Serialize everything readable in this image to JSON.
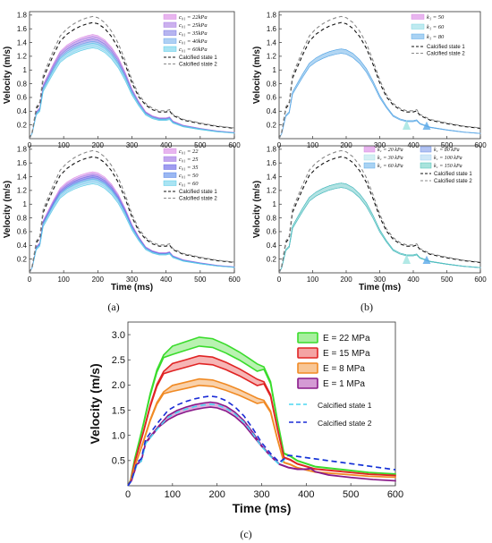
{
  "captions": [
    "(a)",
    "(b)",
    "(c)"
  ],
  "chart_data": [
    {
      "panel": "a-top",
      "type": "line",
      "xlabel": "",
      "ylabel": "Velocity (m/s)",
      "xlim": [
        0,
        600
      ],
      "ylim": [
        0,
        1.85
      ],
      "xticks": [
        "0",
        "100",
        "200",
        "300",
        "400",
        "500",
        "600"
      ],
      "yticks": [
        "0.2",
        "0.4",
        "0.6",
        "0.8",
        "1",
        "1.2",
        "1.4",
        "1.6",
        "1.8"
      ],
      "series": [
        {
          "name": "c₀₁ = 22kPa",
          "color": "#d98be6",
          "fill": "#e8b5ef",
          "scale": 0.835
        },
        {
          "name": "c₀₁ = 25kPa",
          "color": "#a67de3",
          "fill": "#cbb0ee",
          "scale": 0.82
        },
        {
          "name": "c₀₁ = 35kPa",
          "color": "#7a78e0",
          "fill": "#b6b4f0",
          "scale": 0.8
        },
        {
          "name": "c₀₁ = 40kPa",
          "color": "#6aa6e8",
          "fill": "#aed0f4",
          "scale": 0.78
        },
        {
          "name": "c₀₁ = 60kPa",
          "color": "#58c9e6",
          "fill": "#a9e4f3",
          "scale": 0.765
        },
        {
          "name": "Calcified state 1",
          "color": "#111111",
          "dash": "4,3",
          "scale": 0.95
        },
        {
          "name": "Calcified state 2",
          "color": "#888888",
          "dash": "4,3",
          "scale": 1.0
        }
      ]
    },
    {
      "panel": "a-bottom",
      "type": "line",
      "xlabel": "Time (ms)",
      "ylabel": "Velocity (m/s)",
      "xlim": [
        0,
        600
      ],
      "ylim": [
        0,
        1.85
      ],
      "xticks": [
        "0",
        "100",
        "200",
        "300",
        "400",
        "500",
        "600"
      ],
      "yticks": [
        "0.2",
        "0.4",
        "0.6",
        "0.8",
        "1",
        "1.2",
        "1.4",
        "1.6",
        "1.8"
      ],
      "series": [
        {
          "name": "c₀₁ = 22",
          "color": "#d98be6",
          "fill": "#e8b5ef",
          "scale": 0.81
        },
        {
          "name": "c₀₁ = 25",
          "color": "#a67de3",
          "fill": "#c2a6ee",
          "scale": 0.795
        },
        {
          "name": "c₀₁ = 35",
          "color": "#6f6ee3",
          "fill": "#9f9cf0",
          "scale": 0.78
        },
        {
          "name": "c₀₁ = 50",
          "color": "#5d86e8",
          "fill": "#9ab7f2",
          "scale": 0.765
        },
        {
          "name": "c₀₁ = 60",
          "color": "#58c9e6",
          "fill": "#a9e4f3",
          "scale": 0.75
        },
        {
          "name": "Calcified state 1",
          "color": "#111111",
          "dash": "4,3",
          "scale": 0.95
        },
        {
          "name": "Calcified state 2",
          "color": "#888888",
          "dash": "4,3",
          "scale": 1.0
        }
      ]
    },
    {
      "panel": "b-top",
      "type": "line",
      "xlabel": "",
      "ylabel": "Velocity (m/s)",
      "xlim": [
        0,
        600
      ],
      "ylim": [
        0,
        1.85
      ],
      "xticks": [
        "0",
        "100",
        "200",
        "300",
        "400",
        "500",
        "600"
      ],
      "yticks": [
        "0.2",
        "0.4",
        "0.6",
        "0.8",
        "1",
        "1.2",
        "1.4",
        "1.6",
        "1.8"
      ],
      "series": [
        {
          "name": "k₁ = 50",
          "color": "#d98be6",
          "fill": "#e8b5ef",
          "scale": 0.72
        },
        {
          "name": "k₁ = 60",
          "color": "#7fd6e0",
          "fill": "#bfeaf0",
          "scale": 0.72
        },
        {
          "name": "k₁ = 80",
          "color": "#5aa9e8",
          "fill": "#a9d2f3",
          "scale": 0.72
        },
        {
          "name": "Calcified state 1",
          "color": "#111111",
          "dash": "4,3",
          "scale": 0.95
        },
        {
          "name": "Calcified state 2",
          "color": "#888888",
          "dash": "4,3",
          "scale": 1.0
        }
      ]
    },
    {
      "panel": "b-bottom",
      "type": "line",
      "xlabel": "Time (ms)",
      "ylabel": "Velocity (m/s)",
      "xlim": [
        0,
        600
      ],
      "ylim": [
        0,
        1.85
      ],
      "xticks": [
        "0",
        "100",
        "200",
        "300",
        "400",
        "500",
        "600"
      ],
      "yticks": [
        "0.2",
        "0.4",
        "0.6",
        "0.8",
        "1",
        "1.2",
        "1.4",
        "1.6",
        "1.8"
      ],
      "series": [
        {
          "name": "k₁ = 20 kPa",
          "color": "#d98be6",
          "fill": "#e8b5ef",
          "scale": 0.72
        },
        {
          "name": "k₁ = 30 kPa",
          "color": "#a9dfe6",
          "fill": "#d3eff3",
          "scale": 0.72
        },
        {
          "name": "k₁ = 60 kPa",
          "color": "#5aa9e8",
          "fill": "#a9d2f3",
          "scale": 0.72
        },
        {
          "name": "k₁ = 80 kPa",
          "color": "#6f8fe6",
          "fill": "#b2c3f2",
          "scale": 0.72
        },
        {
          "name": "k₁ = 100 kPa",
          "color": "#9fd0f0",
          "fill": "#d0e8f7",
          "scale": 0.72
        },
        {
          "name": "k₁ = 150 kPa",
          "color": "#4cc3b8",
          "fill": "#a9e3dc",
          "scale": 0.72
        },
        {
          "name": "Calcified state 1",
          "color": "#111111",
          "dash": "4,3",
          "scale": 0.95
        },
        {
          "name": "Calcified state 2",
          "color": "#888888",
          "dash": "4,3",
          "scale": 1.0
        }
      ]
    },
    {
      "panel": "c",
      "type": "line",
      "xlabel": "Time (ms)",
      "ylabel": "Velocity (m/s)",
      "xlim": [
        0,
        600
      ],
      "ylim": [
        0,
        3.25
      ],
      "xticks": [
        "0",
        "100",
        "200",
        "300",
        "400",
        "500",
        "600"
      ],
      "yticks": [
        "0.5",
        "1.0",
        "1.5",
        "2.0",
        "2.5",
        "3.0"
      ],
      "series": [
        {
          "name": "E = 22 MPa",
          "color": "#3adc2c",
          "fill": "#a7ef9e",
          "peak": 2.95
        },
        {
          "name": "E = 15 MPa",
          "color": "#e02424",
          "fill": "#f4a3a3",
          "peak": 2.58
        },
        {
          "name": "E = 8 MPa",
          "color": "#f08a24",
          "fill": "#f8c695",
          "peak": 2.12
        },
        {
          "name": "E = 1 MPa",
          "color": "#8a1a8a",
          "fill": "#d49ad4",
          "peak": 1.66
        },
        {
          "name": "Calcified state 1",
          "color": "#4cd6f0",
          "dash": "6,4",
          "peak": 1.62
        },
        {
          "name": "Calcified state 2",
          "color": "#1a2bd6",
          "dash": "6,4",
          "peak": 1.78
        }
      ]
    }
  ]
}
